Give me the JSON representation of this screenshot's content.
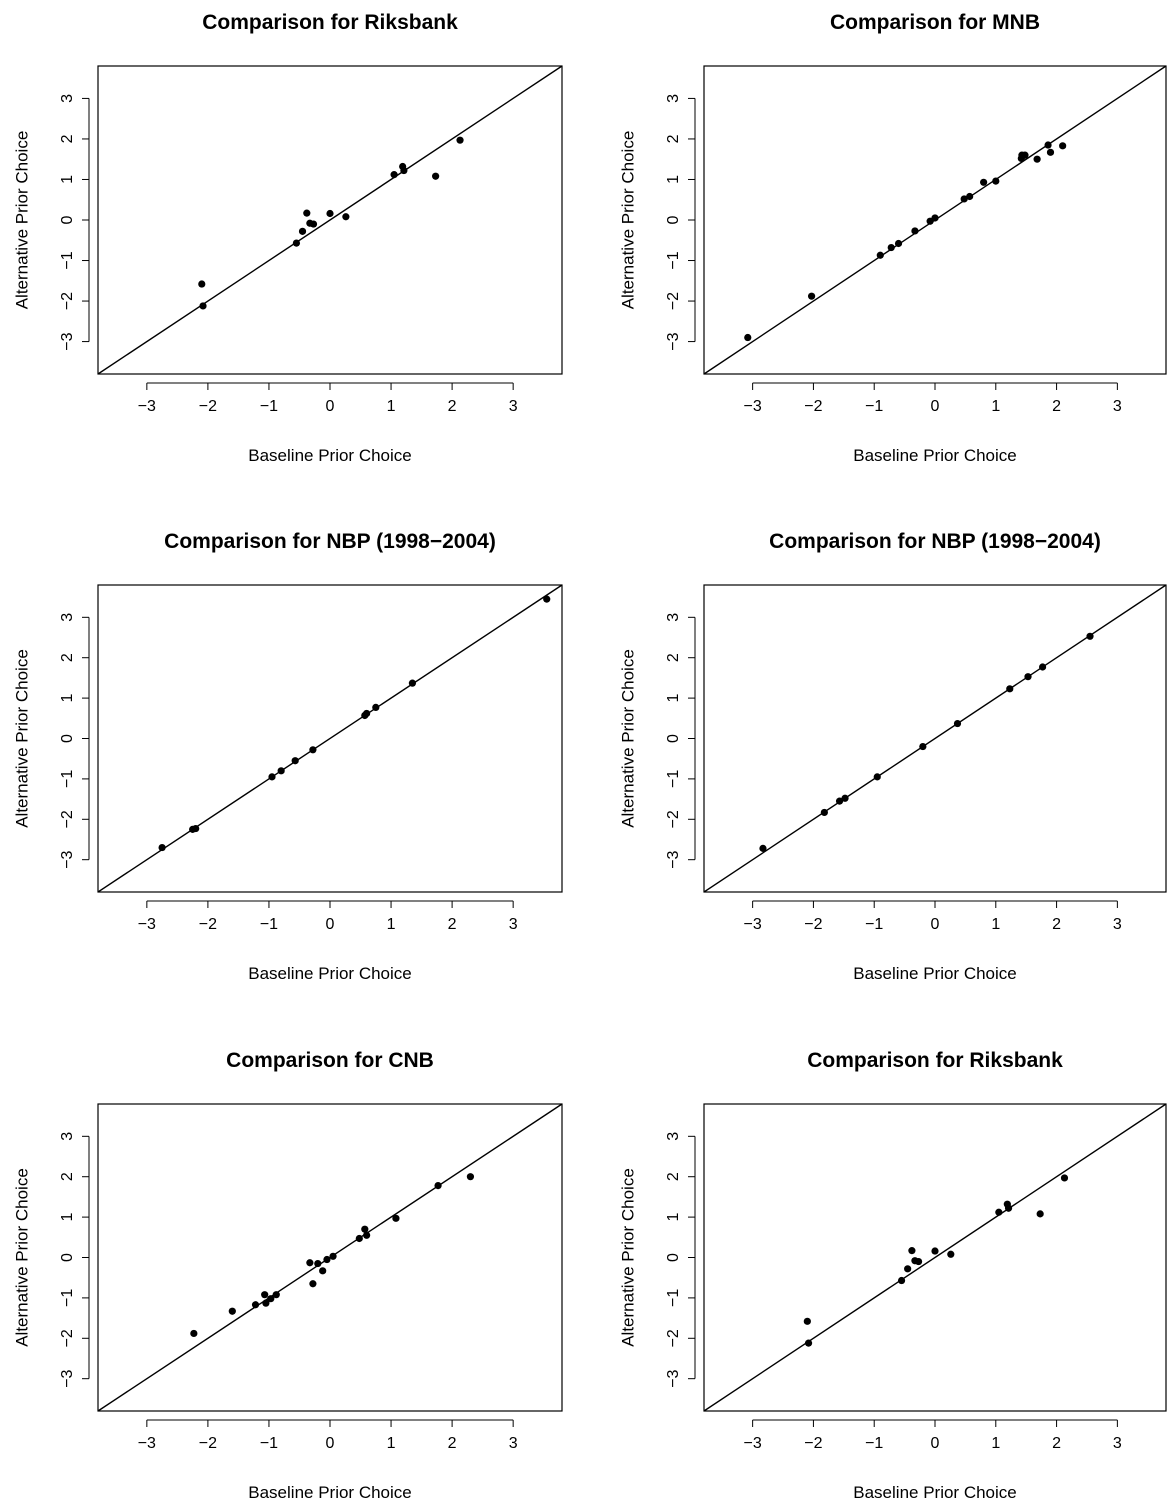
{
  "chart_data": [
    {
      "type": "scatter",
      "title": "Comparison for Riksbank",
      "xlabel": "Baseline Prior Choice",
      "ylabel": "Alternative Prior Choice",
      "xlim": [
        -3.8,
        3.8
      ],
      "ylim": [
        -3.8,
        3.8
      ],
      "xticks": [
        -3,
        -2,
        -1,
        0,
        1,
        2,
        3
      ],
      "yticks": [
        -3,
        -2,
        -1,
        0,
        1,
        2,
        3
      ],
      "tick_labels": [
        "−3",
        "−2",
        "−1",
        "0",
        "1",
        "2",
        "3"
      ],
      "reference_line": "y = x",
      "grid": false,
      "points": [
        {
          "x": -2.1,
          "y": -1.58
        },
        {
          "x": -2.08,
          "y": -2.12
        },
        {
          "x": -0.55,
          "y": -0.57
        },
        {
          "x": -0.45,
          "y": -0.28
        },
        {
          "x": -0.38,
          "y": 0.17
        },
        {
          "x": -0.33,
          "y": -0.08
        },
        {
          "x": -0.27,
          "y": -0.1
        },
        {
          "x": 0.0,
          "y": 0.16
        },
        {
          "x": 0.26,
          "y": 0.08
        },
        {
          "x": 1.05,
          "y": 1.12
        },
        {
          "x": 1.19,
          "y": 1.32
        },
        {
          "x": 1.21,
          "y": 1.22
        },
        {
          "x": 1.73,
          "y": 1.08
        },
        {
          "x": 2.13,
          "y": 1.97
        }
      ]
    },
    {
      "type": "scatter",
      "title": "Comparison for MNB",
      "xlabel": "Baseline Prior Choice",
      "ylabel": "Alternative Prior Choice",
      "xlim": [
        -3.8,
        3.8
      ],
      "ylim": [
        -3.8,
        3.8
      ],
      "xticks": [
        -3,
        -2,
        -1,
        0,
        1,
        2,
        3
      ],
      "yticks": [
        -3,
        -2,
        -1,
        0,
        1,
        2,
        3
      ],
      "tick_labels": [
        "−3",
        "−2",
        "−1",
        "0",
        "1",
        "2",
        "3"
      ],
      "reference_line": "y = x",
      "grid": false,
      "points": [
        {
          "x": -3.08,
          "y": -2.9
        },
        {
          "x": -2.03,
          "y": -1.88
        },
        {
          "x": -0.9,
          "y": -0.87
        },
        {
          "x": -0.72,
          "y": -0.68
        },
        {
          "x": -0.6,
          "y": -0.58
        },
        {
          "x": -0.33,
          "y": -0.27
        },
        {
          "x": -0.08,
          "y": -0.03
        },
        {
          "x": 0.0,
          "y": 0.05
        },
        {
          "x": 0.48,
          "y": 0.52
        },
        {
          "x": 0.57,
          "y": 0.58
        },
        {
          "x": 0.8,
          "y": 0.93
        },
        {
          "x": 1.0,
          "y": 0.96
        },
        {
          "x": 1.42,
          "y": 1.52
        },
        {
          "x": 1.43,
          "y": 1.6
        },
        {
          "x": 1.48,
          "y": 1.6
        },
        {
          "x": 1.68,
          "y": 1.5
        },
        {
          "x": 1.86,
          "y": 1.85
        },
        {
          "x": 1.9,
          "y": 1.67
        },
        {
          "x": 2.1,
          "y": 1.83
        }
      ]
    },
    {
      "type": "scatter",
      "title": "Comparison for NBP (1998−2004)",
      "xlabel": "Baseline Prior Choice",
      "ylabel": "Alternative Prior Choice",
      "xlim": [
        -3.8,
        3.8
      ],
      "ylim": [
        -3.8,
        3.8
      ],
      "xticks": [
        -3,
        -2,
        -1,
        0,
        1,
        2,
        3
      ],
      "yticks": [
        -3,
        -2,
        -1,
        0,
        1,
        2,
        3
      ],
      "tick_labels": [
        "−3",
        "−2",
        "−1",
        "0",
        "1",
        "2",
        "3"
      ],
      "reference_line": "y = x",
      "grid": false,
      "points": [
        {
          "x": -2.75,
          "y": -2.7
        },
        {
          "x": -2.25,
          "y": -2.25
        },
        {
          "x": -2.2,
          "y": -2.23
        },
        {
          "x": -0.95,
          "y": -0.95
        },
        {
          "x": -0.8,
          "y": -0.8
        },
        {
          "x": -0.57,
          "y": -0.55
        },
        {
          "x": -0.28,
          "y": -0.28
        },
        {
          "x": 0.57,
          "y": 0.57
        },
        {
          "x": 0.6,
          "y": 0.62
        },
        {
          "x": 0.75,
          "y": 0.77
        },
        {
          "x": 1.35,
          "y": 1.37
        },
        {
          "x": 3.55,
          "y": 3.45
        }
      ]
    },
    {
      "type": "scatter",
      "title": "Comparison for NBP (1998−2004)",
      "xlabel": "Baseline Prior Choice",
      "ylabel": "Alternative Prior Choice",
      "xlim": [
        -3.8,
        3.8
      ],
      "ylim": [
        -3.8,
        3.8
      ],
      "xticks": [
        -3,
        -2,
        -1,
        0,
        1,
        2,
        3
      ],
      "yticks": [
        -3,
        -2,
        -1,
        0,
        1,
        2,
        3
      ],
      "tick_labels": [
        "−3",
        "−2",
        "−1",
        "0",
        "1",
        "2",
        "3"
      ],
      "reference_line": "y = x",
      "grid": false,
      "points": [
        {
          "x": -2.83,
          "y": -2.72
        },
        {
          "x": -1.82,
          "y": -1.83
        },
        {
          "x": -1.57,
          "y": -1.55
        },
        {
          "x": -1.48,
          "y": -1.48
        },
        {
          "x": -0.95,
          "y": -0.95
        },
        {
          "x": -0.2,
          "y": -0.2
        },
        {
          "x": 0.37,
          "y": 0.37
        },
        {
          "x": 1.23,
          "y": 1.23
        },
        {
          "x": 1.53,
          "y": 1.53
        },
        {
          "x": 1.77,
          "y": 1.77
        },
        {
          "x": 2.55,
          "y": 2.53
        }
      ]
    },
    {
      "type": "scatter",
      "title": "Comparison for CNB",
      "xlabel": "Baseline Prior Choice",
      "ylabel": "Alternative Prior Choice",
      "xlim": [
        -3.8,
        3.8
      ],
      "ylim": [
        -3.8,
        3.8
      ],
      "xticks": [
        -3,
        -2,
        -1,
        0,
        1,
        2,
        3
      ],
      "yticks": [
        -3,
        -2,
        -1,
        0,
        1,
        2,
        3
      ],
      "tick_labels": [
        "−3",
        "−2",
        "−1",
        "0",
        "1",
        "2",
        "3"
      ],
      "reference_line": "y = x",
      "grid": false,
      "points": [
        {
          "x": -2.23,
          "y": -1.88
        },
        {
          "x": -1.6,
          "y": -1.33
        },
        {
          "x": -1.22,
          "y": -1.17
        },
        {
          "x": -1.07,
          "y": -0.92
        },
        {
          "x": -1.05,
          "y": -1.13
        },
        {
          "x": -0.97,
          "y": -1.02
        },
        {
          "x": -0.88,
          "y": -0.92
        },
        {
          "x": -0.33,
          "y": -0.13
        },
        {
          "x": -0.28,
          "y": -0.65
        },
        {
          "x": -0.2,
          "y": -0.15
        },
        {
          "x": -0.12,
          "y": -0.33
        },
        {
          "x": -0.05,
          "y": -0.05
        },
        {
          "x": 0.05,
          "y": 0.03
        },
        {
          "x": 0.48,
          "y": 0.47
        },
        {
          "x": 0.57,
          "y": 0.7
        },
        {
          "x": 0.6,
          "y": 0.55
        },
        {
          "x": 1.08,
          "y": 0.97
        },
        {
          "x": 1.77,
          "y": 1.78
        },
        {
          "x": 2.3,
          "y": 2.0
        }
      ]
    },
    {
      "type": "scatter",
      "title": "Comparison for Riksbank",
      "xlabel": "Baseline Prior Choice",
      "ylabel": "Alternative Prior Choice",
      "xlim": [
        -3.8,
        3.8
      ],
      "ylim": [
        -3.8,
        3.8
      ],
      "xticks": [
        -3,
        -2,
        -1,
        0,
        1,
        2,
        3
      ],
      "yticks": [
        -3,
        -2,
        -1,
        0,
        1,
        2,
        3
      ],
      "tick_labels": [
        "−3",
        "−2",
        "−1",
        "0",
        "1",
        "2",
        "3"
      ],
      "reference_line": "y = x",
      "grid": false,
      "points": [
        {
          "x": -2.1,
          "y": -1.58
        },
        {
          "x": -2.08,
          "y": -2.12
        },
        {
          "x": -0.55,
          "y": -0.57
        },
        {
          "x": -0.45,
          "y": -0.28
        },
        {
          "x": -0.38,
          "y": 0.17
        },
        {
          "x": -0.33,
          "y": -0.08
        },
        {
          "x": -0.27,
          "y": -0.1
        },
        {
          "x": 0.0,
          "y": 0.16
        },
        {
          "x": 0.26,
          "y": 0.08
        },
        {
          "x": 1.05,
          "y": 1.12
        },
        {
          "x": 1.19,
          "y": 1.32
        },
        {
          "x": 1.21,
          "y": 1.22
        },
        {
          "x": 1.73,
          "y": 1.08
        },
        {
          "x": 2.13,
          "y": 1.97
        }
      ]
    }
  ]
}
